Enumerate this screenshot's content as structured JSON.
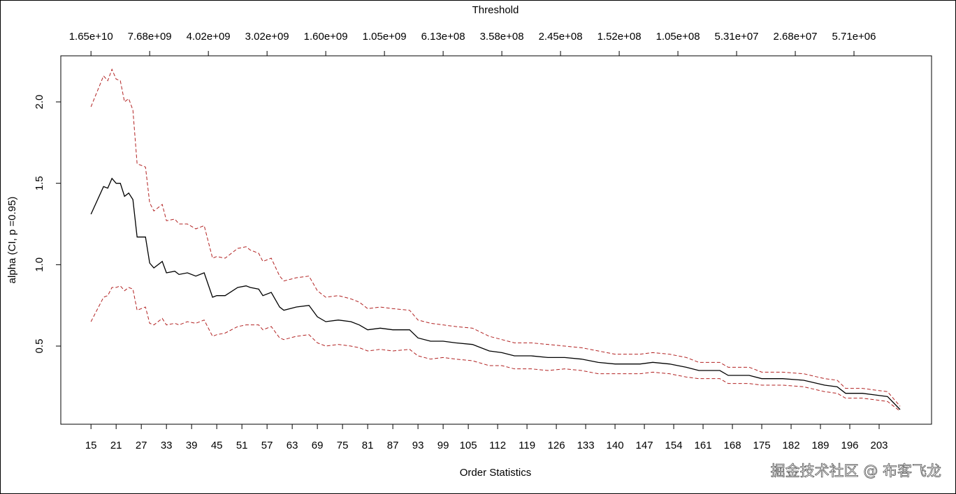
{
  "chart_data": {
    "type": "line",
    "title": "Threshold",
    "xlabel": "Order Statistics",
    "ylabel": "alpha (CI, p =0.95)",
    "watermark": "掘金技术社区 @ 布客飞龙",
    "x": [
      15,
      18,
      19,
      20,
      21,
      22,
      23,
      24,
      25,
      26,
      28,
      29,
      30,
      32,
      33,
      35,
      36,
      38,
      40,
      42,
      44,
      45,
      47,
      50,
      52,
      53,
      55,
      56,
      58,
      60,
      61,
      64,
      67,
      69,
      71,
      74,
      77,
      79,
      81,
      84,
      87,
      91,
      93,
      96,
      99,
      102,
      106,
      110,
      113,
      116,
      120,
      124,
      128,
      132,
      136,
      140,
      146,
      149,
      153,
      157,
      160,
      165,
      167,
      172,
      175,
      180,
      185,
      190,
      193,
      195,
      199,
      202,
      205,
      208
    ],
    "series": [
      {
        "color": "#000000",
        "dashed": false,
        "values": [
          1.31,
          1.48,
          1.47,
          1.53,
          1.5,
          1.5,
          1.42,
          1.44,
          1.4,
          1.17,
          1.17,
          1.01,
          0.98,
          1.02,
          0.95,
          0.96,
          0.94,
          0.95,
          0.93,
          0.95,
          0.8,
          0.81,
          0.81,
          0.86,
          0.87,
          0.86,
          0.85,
          0.81,
          0.83,
          0.74,
          0.72,
          0.74,
          0.75,
          0.68,
          0.65,
          0.66,
          0.65,
          0.63,
          0.6,
          0.61,
          0.6,
          0.6,
          0.55,
          0.53,
          0.53,
          0.52,
          0.51,
          0.47,
          0.46,
          0.44,
          0.44,
          0.43,
          0.43,
          0.42,
          0.4,
          0.39,
          0.39,
          0.4,
          0.39,
          0.37,
          0.35,
          0.35,
          0.32,
          0.32,
          0.3,
          0.3,
          0.29,
          0.26,
          0.25,
          0.21,
          0.21,
          0.2,
          0.19,
          0.11
        ]
      },
      {
        "color": "#b22222",
        "dashed": true,
        "values": [
          1.97,
          2.16,
          2.13,
          2.2,
          2.14,
          2.13,
          2.0,
          2.02,
          1.95,
          1.62,
          1.6,
          1.38,
          1.33,
          1.37,
          1.27,
          1.28,
          1.25,
          1.25,
          1.22,
          1.24,
          1.04,
          1.05,
          1.04,
          1.1,
          1.11,
          1.09,
          1.07,
          1.02,
          1.04,
          0.93,
          0.9,
          0.92,
          0.93,
          0.84,
          0.8,
          0.81,
          0.79,
          0.77,
          0.73,
          0.74,
          0.73,
          0.72,
          0.66,
          0.64,
          0.63,
          0.62,
          0.61,
          0.56,
          0.54,
          0.52,
          0.52,
          0.51,
          0.5,
          0.49,
          0.47,
          0.45,
          0.45,
          0.46,
          0.45,
          0.43,
          0.4,
          0.4,
          0.37,
          0.37,
          0.34,
          0.34,
          0.33,
          0.3,
          0.29,
          0.24,
          0.24,
          0.23,
          0.22,
          0.13
        ]
      },
      {
        "color": "#b22222",
        "dashed": true,
        "values": [
          0.65,
          0.8,
          0.81,
          0.86,
          0.86,
          0.87,
          0.84,
          0.86,
          0.85,
          0.72,
          0.74,
          0.64,
          0.63,
          0.67,
          0.63,
          0.64,
          0.63,
          0.65,
          0.64,
          0.66,
          0.56,
          0.57,
          0.58,
          0.62,
          0.63,
          0.63,
          0.63,
          0.6,
          0.62,
          0.55,
          0.54,
          0.56,
          0.57,
          0.52,
          0.5,
          0.51,
          0.5,
          0.49,
          0.47,
          0.48,
          0.47,
          0.48,
          0.44,
          0.42,
          0.43,
          0.42,
          0.41,
          0.38,
          0.38,
          0.36,
          0.36,
          0.35,
          0.36,
          0.35,
          0.33,
          0.33,
          0.33,
          0.34,
          0.33,
          0.31,
          0.3,
          0.3,
          0.27,
          0.27,
          0.26,
          0.26,
          0.25,
          0.22,
          0.21,
          0.18,
          0.18,
          0.17,
          0.16,
          0.1
        ]
      }
    ],
    "xlim": [
      7.8,
      215.5
    ],
    "xticks": [
      15,
      21,
      27,
      33,
      39,
      45,
      51,
      57,
      63,
      69,
      75,
      81,
      87,
      93,
      99,
      105,
      112,
      119,
      126,
      133,
      140,
      147,
      154,
      161,
      168,
      175,
      182,
      189,
      196,
      203
    ],
    "top_ticks": [
      {
        "value": 15,
        "label": "1.65e+10"
      },
      {
        "value": 29,
        "label": "7.68e+09"
      },
      {
        "value": 43,
        "label": "4.02e+09"
      },
      {
        "value": 57,
        "label": "3.02e+09"
      },
      {
        "value": 71,
        "label": "1.60e+09"
      },
      {
        "value": 85,
        "label": "1.05e+09"
      },
      {
        "value": 99,
        "label": "6.13e+08"
      },
      {
        "value": 113,
        "label": "3.58e+08"
      },
      {
        "value": 127,
        "label": "2.45e+08"
      },
      {
        "value": 141,
        "label": "1.52e+08"
      },
      {
        "value": 155,
        "label": "1.05e+08"
      },
      {
        "value": 169,
        "label": "5.31e+07"
      },
      {
        "value": 183,
        "label": "2.68e+07"
      },
      {
        "value": 197,
        "label": "5.71e+06"
      }
    ],
    "ylim": [
      0.02,
      2.283
    ],
    "yticks": [
      0.5,
      {
        "value": 1,
        "label": "1.0"
      },
      1.5,
      {
        "value": 2,
        "label": "2.0"
      }
    ]
  }
}
